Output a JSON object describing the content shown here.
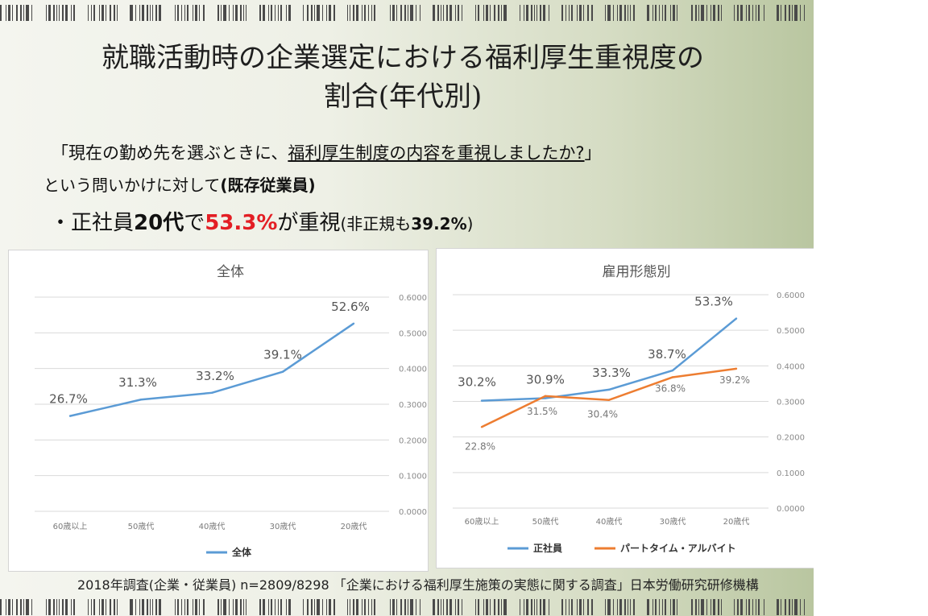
{
  "slide": {
    "title_line1": "就職活動時の企業選定における福利厚生重視度の",
    "title_line2": "割合(年代別)",
    "question_open": "「現在の勤め先を選ぶときに、",
    "question_underlined": "福利厚生制度の内容を重視しましたか?",
    "question_close": "」",
    "question_line2_text": "という問いかけに対して",
    "question_line2_bold": "(既存従業員)",
    "bullet_prefix": "・正社員",
    "bullet_age": "20代",
    "bullet_mid": "で",
    "bullet_highlight": "53.3%",
    "bullet_after": "が重視",
    "bullet_note_open": "(非正規も",
    "bullet_note_value": "39.2%",
    "bullet_note_close": ")",
    "source": "2018年調査(企業・従業員) n=2809/8298 「企業における福利厚生施策の実態に関する調査」日本労働研究研修機構",
    "highlight_color": "#e31e24"
  },
  "chart_data": [
    {
      "type": "line",
      "title": "全体",
      "categories": [
        "60歳以上",
        "50歳代",
        "40歳代",
        "30歳代",
        "20歳代"
      ],
      "series": [
        {
          "name": "全体",
          "values": [
            0.267,
            0.313,
            0.332,
            0.391,
            0.526
          ],
          "labels": [
            "26.7%",
            "31.3%",
            "33.2%",
            "39.1%",
            "52.6%"
          ],
          "color": "#5b9bd5"
        }
      ],
      "ylim": [
        0,
        0.6
      ],
      "yticks": [
        "0.0000",
        "0.1000",
        "0.2000",
        "0.3000",
        "0.4000",
        "0.5000",
        "0.6000"
      ],
      "y_axis_side": "right",
      "grid": true,
      "legend": "bottom"
    },
    {
      "type": "line",
      "title": "雇用形態別",
      "categories": [
        "60歳以上",
        "50歳代",
        "40歳代",
        "30歳代",
        "20歳代"
      ],
      "series": [
        {
          "name": "正社員",
          "values": [
            0.302,
            0.309,
            0.333,
            0.387,
            0.533
          ],
          "labels": [
            "30.2%",
            "30.9%",
            "33.3%",
            "38.7%",
            "53.3%"
          ],
          "color": "#5b9bd5"
        },
        {
          "name": "パートタイム・アルバイト",
          "values": [
            0.228,
            0.315,
            0.304,
            0.368,
            0.392
          ],
          "labels": [
            "22.8%",
            "31.5%",
            "30.4%",
            "36.8%",
            "39.2%"
          ],
          "color": "#ed7d31"
        }
      ],
      "ylim": [
        0,
        0.6
      ],
      "yticks": [
        "0.0000",
        "0.1000",
        "0.2000",
        "0.3000",
        "0.4000",
        "0.5000",
        "0.6000"
      ],
      "y_axis_side": "right",
      "grid": true,
      "legend": "bottom"
    }
  ]
}
